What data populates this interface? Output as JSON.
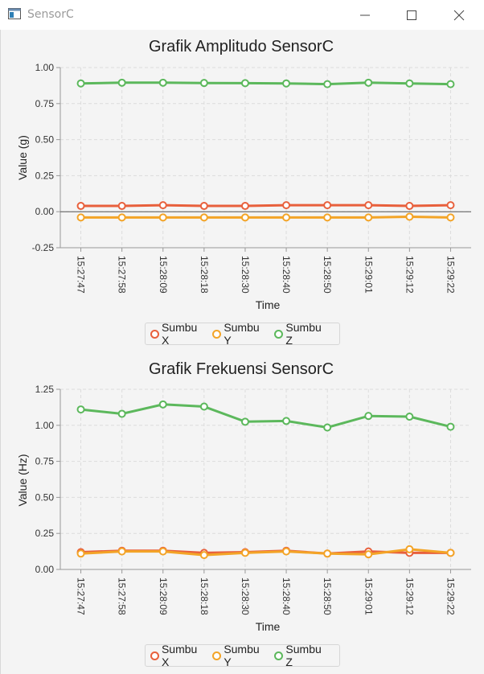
{
  "window": {
    "title": "SensorC"
  },
  "chart_data": [
    {
      "type": "line",
      "title": "Grafik Amplitudo SensorC",
      "xlabel": "Time",
      "ylabel": "Value (g)",
      "ylim": [
        -0.25,
        1.0
      ],
      "yticks": [
        "-0.25",
        "0.00",
        "0.25",
        "0.50",
        "0.75",
        "1.00"
      ],
      "categories": [
        "15:27:47",
        "15:27:58",
        "15:28:09",
        "15:28:18",
        "15:28:30",
        "15:28:40",
        "15:28:50",
        "15:29:01",
        "15:29:12",
        "15:29:22"
      ],
      "series": [
        {
          "name": "Sumbu X",
          "color": "#e8603c",
          "values": [
            0.04,
            0.04,
            0.045,
            0.04,
            0.04,
            0.045,
            0.045,
            0.045,
            0.04,
            0.045
          ]
        },
        {
          "name": "Sumbu Y",
          "color": "#f3a427",
          "values": [
            -0.04,
            -0.04,
            -0.04,
            -0.04,
            -0.04,
            -0.04,
            -0.04,
            -0.04,
            -0.035,
            -0.04
          ]
        },
        {
          "name": "Sumbu Z",
          "color": "#5cb85c",
          "values": [
            0.89,
            0.895,
            0.895,
            0.893,
            0.892,
            0.89,
            0.885,
            0.895,
            0.89,
            0.885
          ]
        }
      ],
      "grid": true,
      "legend": "bottom-center"
    },
    {
      "type": "line",
      "title": "Grafik Frekuensi SensorC",
      "xlabel": "Time",
      "ylabel": "Value (Hz)",
      "ylim": [
        0,
        1.25
      ],
      "yticks": [
        "0.00",
        "0.25",
        "0.50",
        "0.75",
        "1.00",
        "1.25"
      ],
      "categories": [
        "15:27:47",
        "15:27:58",
        "15:28:09",
        "15:28:18",
        "15:28:30",
        "15:28:40",
        "15:28:50",
        "15:29:01",
        "15:29:12",
        "15:29:22"
      ],
      "series": [
        {
          "name": "Sumbu X",
          "color": "#e8603c",
          "values": [
            0.12,
            0.13,
            0.13,
            0.115,
            0.12,
            0.13,
            0.11,
            0.125,
            0.115,
            0.115
          ]
        },
        {
          "name": "Sumbu Y",
          "color": "#f3a427",
          "values": [
            0.11,
            0.125,
            0.125,
            0.1,
            0.115,
            0.125,
            0.11,
            0.105,
            0.14,
            0.115
          ]
        },
        {
          "name": "Sumbu Z",
          "color": "#5cb85c",
          "values": [
            1.11,
            1.08,
            1.145,
            1.13,
            1.025,
            1.03,
            0.985,
            1.065,
            1.06,
            0.99
          ]
        }
      ],
      "grid": true,
      "legend": "bottom-center"
    }
  ]
}
